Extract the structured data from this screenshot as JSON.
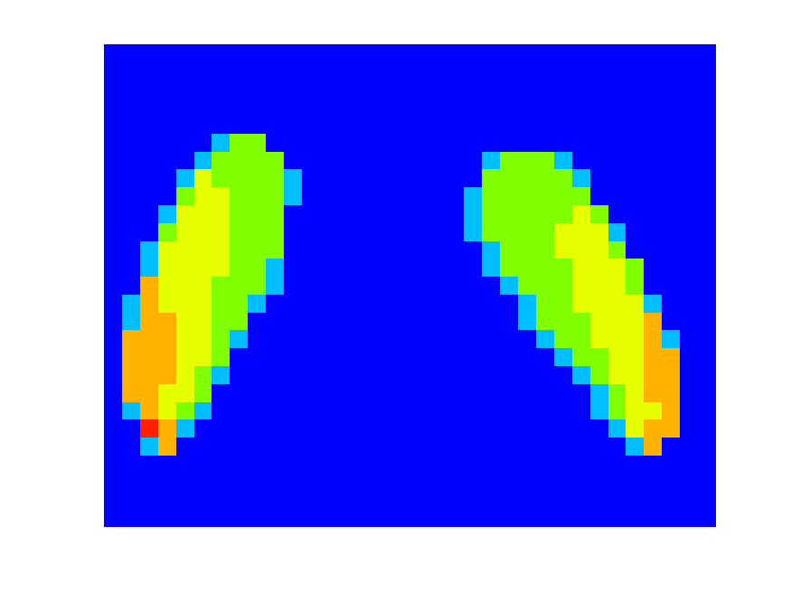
{
  "chart_data": {
    "type": "heatmap",
    "tick_labels": false,
    "clim": [
      0,
      5
    ],
    "cells": [
      [
        0,
        0,
        0,
        0,
        0,
        0,
        0,
        0,
        0,
        0,
        0,
        0,
        0,
        0,
        0,
        0,
        0,
        0,
        0,
        0,
        0,
        0,
        0,
        0,
        0,
        0,
        0,
        0,
        0,
        0,
        0,
        0,
        0,
        0
      ],
      [
        0,
        0,
        0,
        0,
        0,
        0,
        0,
        0,
        0,
        0,
        0,
        0,
        0,
        0,
        0,
        0,
        0,
        0,
        0,
        0,
        0,
        0,
        0,
        0,
        0,
        0,
        0,
        0,
        0,
        0,
        0,
        0,
        0,
        0
      ],
      [
        0,
        0,
        0,
        0,
        0,
        0,
        0,
        0,
        0,
        0,
        0,
        0,
        0,
        0,
        0,
        0,
        0,
        0,
        0,
        0,
        0,
        0,
        0,
        0,
        0,
        0,
        0,
        0,
        0,
        0,
        0,
        0,
        0,
        0
      ],
      [
        0,
        0,
        0,
        0,
        0,
        0,
        0,
        0,
        0,
        0,
        0,
        0,
        0,
        0,
        0,
        0,
        0,
        0,
        0,
        0,
        0,
        0,
        0,
        0,
        0,
        0,
        0,
        0,
        0,
        0,
        0,
        0,
        0,
        0
      ],
      [
        0,
        0,
        0,
        0,
        0,
        0,
        0,
        0,
        0,
        0,
        0,
        0,
        0,
        0,
        0,
        0,
        0,
        0,
        0,
        0,
        0,
        0,
        0,
        0,
        0,
        0,
        0,
        0,
        0,
        0,
        0,
        0,
        0,
        0
      ],
      [
        0,
        0,
        0,
        0,
        0,
        0,
        1,
        2,
        2,
        0,
        0,
        0,
        0,
        0,
        0,
        0,
        0,
        0,
        0,
        0,
        0,
        0,
        0,
        0,
        0,
        0,
        0,
        0,
        0,
        0,
        0,
        0,
        0,
        0
      ],
      [
        0,
        0,
        0,
        0,
        0,
        1,
        2,
        2,
        2,
        2,
        0,
        0,
        0,
        0,
        0,
        0,
        0,
        0,
        0,
        0,
        0,
        1,
        2,
        2,
        2,
        1,
        0,
        0,
        0,
        0,
        0,
        0,
        0,
        0
      ],
      [
        0,
        0,
        0,
        0,
        1,
        3,
        2,
        2,
        2,
        2,
        1,
        0,
        0,
        0,
        0,
        0,
        0,
        0,
        0,
        0,
        0,
        2,
        2,
        2,
        2,
        2,
        1,
        0,
        0,
        0,
        0,
        0,
        0,
        0
      ],
      [
        0,
        0,
        0,
        0,
        2,
        3,
        3,
        2,
        2,
        2,
        1,
        0,
        0,
        0,
        0,
        0,
        0,
        0,
        0,
        0,
        1,
        2,
        2,
        2,
        2,
        2,
        2,
        0,
        0,
        0,
        0,
        0,
        0,
        0
      ],
      [
        0,
        0,
        0,
        1,
        3,
        3,
        3,
        2,
        2,
        2,
        0,
        0,
        0,
        0,
        0,
        0,
        0,
        0,
        0,
        0,
        1,
        2,
        2,
        2,
        2,
        2,
        3,
        2,
        0,
        0,
        0,
        0,
        0,
        0
      ],
      [
        0,
        0,
        0,
        2,
        3,
        3,
        3,
        2,
        2,
        2,
        0,
        0,
        0,
        0,
        0,
        0,
        0,
        0,
        0,
        0,
        1,
        2,
        2,
        2,
        2,
        3,
        3,
        3,
        1,
        0,
        0,
        0,
        0,
        0
      ],
      [
        0,
        0,
        1,
        3,
        3,
        3,
        3,
        2,
        2,
        2,
        0,
        0,
        0,
        0,
        0,
        0,
        0,
        0,
        0,
        0,
        0,
        1,
        2,
        2,
        2,
        3,
        3,
        3,
        2,
        0,
        0,
        0,
        0,
        0
      ],
      [
        0,
        0,
        1,
        3,
        3,
        3,
        3,
        2,
        2,
        1,
        0,
        0,
        0,
        0,
        0,
        0,
        0,
        0,
        0,
        0,
        0,
        1,
        2,
        2,
        2,
        2,
        3,
        3,
        3,
        2,
        0,
        0,
        0,
        0
      ],
      [
        0,
        0,
        4,
        3,
        3,
        3,
        2,
        2,
        2,
        1,
        0,
        0,
        0,
        0,
        0,
        0,
        0,
        0,
        0,
        0,
        0,
        0,
        1,
        2,
        2,
        2,
        3,
        3,
        3,
        2,
        0,
        0,
        0,
        0
      ],
      [
        0,
        1,
        4,
        3,
        3,
        3,
        2,
        2,
        1,
        0,
        0,
        0,
        0,
        0,
        0,
        0,
        0,
        0,
        0,
        0,
        0,
        0,
        0,
        1,
        2,
        2,
        3,
        3,
        3,
        3,
        1,
        0,
        0,
        0
      ],
      [
        0,
        1,
        4,
        4,
        3,
        3,
        2,
        2,
        0,
        0,
        0,
        0,
        0,
        0,
        0,
        0,
        0,
        0,
        0,
        0,
        0,
        0,
        0,
        1,
        2,
        2,
        2,
        3,
        3,
        3,
        4,
        0,
        0,
        0
      ],
      [
        0,
        4,
        4,
        4,
        3,
        3,
        2,
        1,
        0,
        0,
        0,
        0,
        0,
        0,
        0,
        0,
        0,
        0,
        0,
        0,
        0,
        0,
        0,
        0,
        1,
        2,
        2,
        3,
        3,
        3,
        4,
        1,
        0,
        0
      ],
      [
        0,
        4,
        4,
        4,
        3,
        3,
        2,
        0,
        0,
        0,
        0,
        0,
        0,
        0,
        0,
        0,
        0,
        0,
        0,
        0,
        0,
        0,
        0,
        0,
        0,
        1,
        2,
        2,
        3,
        3,
        4,
        4,
        0,
        0
      ],
      [
        0,
        4,
        4,
        4,
        3,
        2,
        1,
        0,
        0,
        0,
        0,
        0,
        0,
        0,
        0,
        0,
        0,
        0,
        0,
        0,
        0,
        0,
        0,
        0,
        0,
        0,
        1,
        2,
        3,
        3,
        4,
        4,
        0,
        0
      ],
      [
        0,
        4,
        4,
        3,
        3,
        2,
        0,
        0,
        0,
        0,
        0,
        0,
        0,
        0,
        0,
        0,
        0,
        0,
        0,
        0,
        0,
        0,
        0,
        0,
        0,
        0,
        0,
        1,
        2,
        3,
        4,
        4,
        0,
        0
      ],
      [
        0,
        1,
        4,
        3,
        2,
        1,
        0,
        0,
        0,
        0,
        0,
        0,
        0,
        0,
        0,
        0,
        0,
        0,
        0,
        0,
        0,
        0,
        0,
        0,
        0,
        0,
        0,
        1,
        2,
        3,
        3,
        4,
        0,
        0
      ],
      [
        0,
        0,
        5,
        4,
        1,
        0,
        0,
        0,
        0,
        0,
        0,
        0,
        0,
        0,
        0,
        0,
        0,
        0,
        0,
        0,
        0,
        0,
        0,
        0,
        0,
        0,
        0,
        0,
        1,
        3,
        4,
        4,
        0,
        0
      ],
      [
        0,
        0,
        1,
        4,
        0,
        0,
        0,
        0,
        0,
        0,
        0,
        0,
        0,
        0,
        0,
        0,
        0,
        0,
        0,
        0,
        0,
        0,
        0,
        0,
        0,
        0,
        0,
        0,
        0,
        1,
        4,
        0,
        0,
        0
      ],
      [
        0,
        0,
        0,
        0,
        0,
        0,
        0,
        0,
        0,
        0,
        0,
        0,
        0,
        0,
        0,
        0,
        0,
        0,
        0,
        0,
        0,
        0,
        0,
        0,
        0,
        0,
        0,
        0,
        0,
        0,
        0,
        0,
        0,
        0
      ],
      [
        0,
        0,
        0,
        0,
        0,
        0,
        0,
        0,
        0,
        0,
        0,
        0,
        0,
        0,
        0,
        0,
        0,
        0,
        0,
        0,
        0,
        0,
        0,
        0,
        0,
        0,
        0,
        0,
        0,
        0,
        0,
        0,
        0,
        0
      ],
      [
        0,
        0,
        0,
        0,
        0,
        0,
        0,
        0,
        0,
        0,
        0,
        0,
        0,
        0,
        0,
        0,
        0,
        0,
        0,
        0,
        0,
        0,
        0,
        0,
        0,
        0,
        0,
        0,
        0,
        0,
        0,
        0,
        0,
        0
      ],
      [
        0,
        0,
        0,
        0,
        0,
        0,
        0,
        0,
        0,
        0,
        0,
        0,
        0,
        0,
        0,
        0,
        0,
        0,
        0,
        0,
        0,
        0,
        0,
        0,
        0,
        0,
        0,
        0,
        0,
        0,
        0,
        0,
        0,
        0
      ]
    ]
  }
}
